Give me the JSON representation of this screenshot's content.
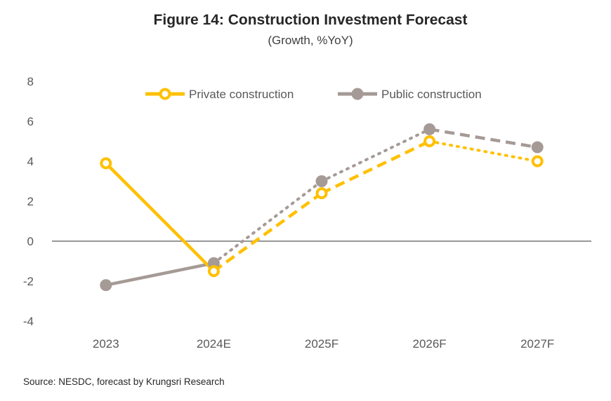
{
  "title": "Figure 14: Construction Investment Forecast",
  "subtitle": "(Growth, %YoY)",
  "source": "Source: NESDC,  forecast by Krungsri Research",
  "colors": {
    "private": "#FFC000",
    "public": "#A59A96",
    "axis": "#595959"
  },
  "chart_data": {
    "type": "line",
    "title": "Figure 14: Construction Investment Forecast",
    "subtitle": "(Growth, %YoY)",
    "categories": [
      "2023",
      "2024E",
      "2025F",
      "2026F",
      "2027F"
    ],
    "ylim": [
      -4,
      8
    ],
    "yticks": [
      "8",
      "6",
      "4",
      "2",
      "0",
      "-2",
      "-4"
    ],
    "legend_position": "top",
    "grid": false,
    "series": [
      {
        "name": "Private construction",
        "values": [
          3.9,
          -1.5,
          2.4,
          5.0,
          4.0
        ],
        "segment_styles": [
          "solid",
          "dashed",
          "dashed",
          "dotted"
        ]
      },
      {
        "name": "Public construction",
        "values": [
          -2.2,
          -1.1,
          3.0,
          5.6,
          4.7
        ],
        "segment_styles": [
          "solid",
          "dotted",
          "dotted",
          "dashed"
        ]
      }
    ]
  }
}
